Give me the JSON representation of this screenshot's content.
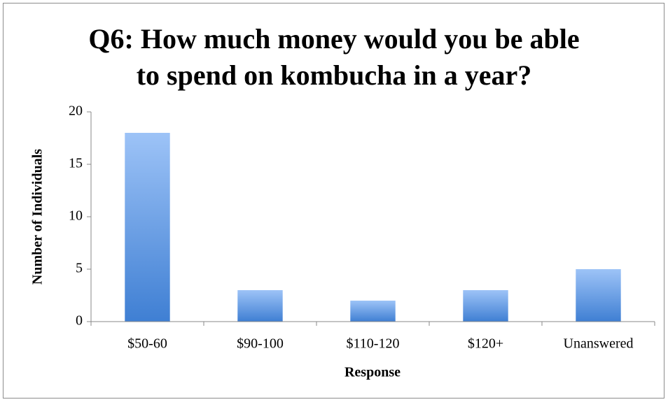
{
  "chart_data": {
    "type": "bar",
    "title": "Q6: How much money would you be able to spend on kombucha in a year?",
    "xlabel": "Response",
    "ylabel": "Number of Individuals",
    "categories": [
      "$50-60",
      "$90-100",
      "$110-120",
      "$120+",
      "Unanswered"
    ],
    "values": [
      18,
      3,
      2,
      3,
      5
    ],
    "color": "#4f8ee0",
    "ylim": [
      0,
      20
    ],
    "yticks": [
      0,
      5,
      10,
      15,
      20
    ],
    "grid": false
  }
}
